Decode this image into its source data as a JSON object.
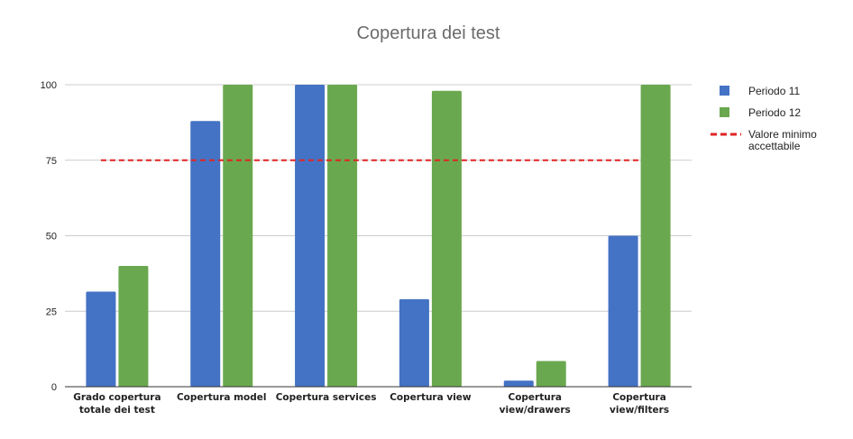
{
  "chart_data": {
    "type": "bar",
    "title": "Copertura dei test",
    "xlabel": "",
    "ylabel": "",
    "ylim": [
      0,
      100
    ],
    "yticks": [
      0,
      25,
      50,
      75,
      100
    ],
    "grid": true,
    "legend_position": "right",
    "categories": [
      [
        "Grado copertura",
        "totale dei test"
      ],
      [
        "Copertura model"
      ],
      [
        "Copertura services"
      ],
      [
        "Copertura view"
      ],
      [
        "Copertura",
        "view/drawers"
      ],
      [
        "Copertura",
        "view/filters"
      ]
    ],
    "series": [
      {
        "name": "Periodo 11",
        "color": "#4472c4",
        "values": [
          31.5,
          88,
          100,
          29,
          2,
          50
        ]
      },
      {
        "name": "Periodo 12",
        "color": "#6aa84f",
        "values": [
          40,
          100,
          100,
          98,
          8.5,
          100
        ]
      }
    ],
    "reference_line": {
      "name": [
        "Valore minimo",
        "accettabile"
      ],
      "value": 75,
      "color": "#e02424",
      "style": "dashed"
    }
  }
}
